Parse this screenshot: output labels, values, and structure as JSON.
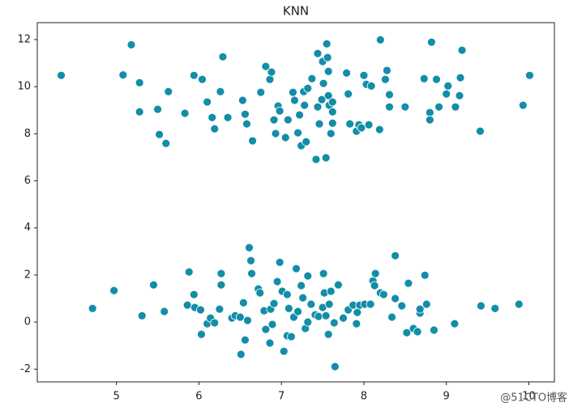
{
  "chart_data": {
    "type": "scatter",
    "title": "KNN",
    "color": "#138da8",
    "x": [
      4.33,
      5.08,
      5.18,
      5.28,
      5.28,
      5.5,
      5.52,
      5.6,
      5.63,
      5.83,
      5.94,
      6.04,
      6.1,
      6.16,
      6.19,
      6.26,
      6.29,
      6.35,
      6.53,
      6.56,
      6.58,
      6.65,
      6.75,
      6.81,
      6.86,
      6.88,
      6.91,
      6.93,
      6.96,
      6.98,
      7.05,
      7.08,
      7.14,
      7.16,
      7.2,
      7.22,
      7.24,
      7.27,
      7.3,
      7.28,
      7.32,
      7.37,
      7.42,
      7.44,
      7.44,
      7.46,
      7.5,
      7.51,
      7.49,
      7.54,
      7.55,
      7.56,
      7.57,
      7.57,
      7.58,
      7.62,
      7.62,
      7.6,
      7.62,
      7.79,
      7.81,
      7.83,
      7.91,
      7.94,
      7.97,
      8.0,
      8.03,
      8.06,
      8.09,
      8.19,
      8.2,
      8.26,
      8.28,
      8.31,
      8.31,
      8.5,
      8.73,
      8.8,
      8.8,
      8.82,
      8.88,
      8.91,
      9.0,
      9.02,
      9.11,
      9.16,
      9.17,
      9.19,
      9.41,
      9.93,
      10.01,
      4.71,
      4.97,
      5.31,
      5.45,
      5.58,
      5.86,
      5.88,
      5.94,
      5.95,
      6.02,
      6.03,
      6.1,
      6.14,
      6.19,
      6.25,
      6.27,
      6.27,
      6.4,
      6.44,
      6.5,
      6.51,
      6.54,
      6.56,
      6.59,
      6.61,
      6.63,
      6.64,
      6.72,
      6.74,
      6.79,
      6.81,
      6.86,
      6.87,
      6.89,
      6.91,
      6.95,
      6.98,
      7.01,
      7.03,
      7.07,
      7.07,
      7.09,
      7.12,
      7.15,
      7.18,
      7.2,
      7.24,
      7.26,
      7.29,
      7.32,
      7.32,
      7.36,
      7.41,
      7.45,
      7.5,
      7.52,
      7.51,
      7.54,
      7.57,
      7.58,
      7.6,
      7.64,
      7.65,
      7.69,
      7.75,
      7.81,
      7.87,
      7.91,
      7.92,
      7.95,
      8.01,
      8.08,
      8.11,
      8.13,
      8.14,
      8.2,
      8.24,
      8.34,
      8.38,
      8.38,
      8.46,
      8.52,
      8.54,
      8.6,
      8.65,
      8.68,
      8.68,
      8.74,
      8.76,
      8.85,
      9.1,
      9.42,
      9.59,
      9.88
    ],
    "values": [
      10.48,
      10.5,
      11.78,
      10.17,
      8.93,
      9.04,
      7.97,
      7.59,
      9.79,
      8.87,
      10.48,
      10.31,
      9.35,
      8.69,
      8.21,
      9.79,
      11.27,
      8.69,
      9.42,
      8.83,
      8.42,
      7.7,
      9.76,
      10.86,
      10.31,
      10.62,
      8.59,
      8.01,
      9.18,
      8.97,
      7.84,
      8.59,
      9.76,
      9.42,
      8.04,
      8.8,
      7.49,
      9.79,
      7.66,
      9.21,
      9.93,
      10.34,
      6.91,
      11.41,
      9.14,
      8.42,
      11.07,
      10.14,
      9.45,
      6.98,
      11.82,
      11.24,
      10.65,
      9.62,
      9.21,
      8.45,
      8.93,
      8.01,
      9.35,
      10.58,
      9.69,
      8.42,
      8.11,
      8.38,
      8.25,
      10.48,
      10.1,
      8.38,
      10.03,
      8.18,
      11.99,
      10.31,
      10.69,
      9.66,
      9.14,
      9.14,
      10.34,
      8.9,
      8.59,
      11.89,
      10.31,
      9.14,
      9.69,
      10.03,
      9.14,
      9.62,
      10.38,
      11.55,
      8.11,
      9.21,
      10.48,
      0.58,
      1.34,
      0.27,
      1.58,
      0.45,
      0.72,
      2.13,
      1.17,
      0.62,
      0.52,
      -0.52,
      -0.07,
      0.17,
      -0.03,
      0.55,
      2.06,
      1.58,
      0.17,
      0.27,
      0.21,
      -1.37,
      0.82,
      -0.76,
      0.07,
      3.16,
      2.61,
      2.06,
      1.41,
      1.24,
      0.48,
      -0.31,
      -0.89,
      0.55,
      -0.1,
      0.79,
      1.72,
      2.54,
      1.31,
      -1.24,
      -0.58,
      1.17,
      0.58,
      -0.62,
      0.21,
      2.27,
      0.45,
      1.55,
      1.03,
      -0.27,
      0.0,
      1.96,
      0.76,
      0.31,
      0.24,
      0.62,
      1.24,
      2.06,
      0.27,
      -0.52,
      0.76,
      1.31,
      -0.03,
      -1.89,
      1.58,
      0.17,
      0.52,
      0.72,
      -0.07,
      0.41,
      0.72,
      0.76,
      0.76,
      1.75,
      1.55,
      2.06,
      1.24,
      1.17,
      0.21,
      2.82,
      1.0,
      0.69,
      -0.45,
      1.65,
      -0.27,
      -0.41,
      0.38,
      0.55,
      1.99,
      0.76,
      -0.34,
      -0.07,
      0.69,
      0.58,
      0.76
    ],
    "xlim": [
      4.04,
      10.31
    ],
    "xticks": [
      5,
      6,
      7,
      8,
      9,
      10
    ],
    "ylim": [
      -2.54,
      12.72
    ],
    "yticks": [
      -2,
      0,
      2,
      4,
      6,
      8,
      10,
      12
    ]
  },
  "watermark": "@51CTO博客"
}
